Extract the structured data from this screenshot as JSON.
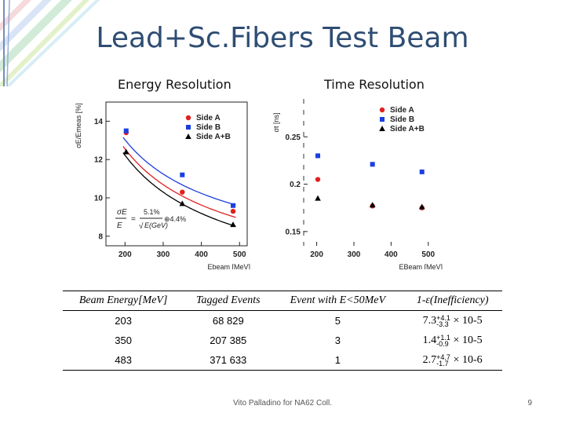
{
  "slide": {
    "title": "Lead+Sc.Fibers Test Beam",
    "energy_heading": "Energy Resolution",
    "time_heading": "Time Resolution",
    "footer": "Vito Palladino for NA62 Coll.",
    "page_number": "9"
  },
  "chart_data": [
    {
      "type": "scatter",
      "name": "energy",
      "ylabel": "σE/Emeas [%]",
      "xlabel": "Ebeam [MeV]",
      "xlim": [
        150,
        520
      ],
      "ylim": [
        7.5,
        15
      ],
      "xticks": [
        200,
        300,
        400,
        500
      ],
      "yticks": [
        8,
        10,
        12,
        14
      ],
      "formula": {
        "lhs_num": "σE",
        "lhs_den": "E",
        "coef": "5.1%",
        "sqrt": "E(GeV)",
        "const": "⊕4.4%"
      },
      "series": [
        {
          "name": "Side A",
          "color": "#e02020",
          "marker": "circle",
          "x": [
            203,
            350,
            483
          ],
          "y": [
            13.4,
            10.3,
            9.3
          ]
        },
        {
          "name": "Side B",
          "color": "#1a3fe0",
          "marker": "square",
          "x": [
            203,
            350,
            483
          ],
          "y": [
            13.5,
            11.2,
            9.6
          ]
        },
        {
          "name": "Side A+B",
          "color": "#000000",
          "marker": "triangle",
          "x": [
            203,
            350,
            483
          ],
          "y": [
            12.4,
            9.7,
            8.6
          ]
        }
      ],
      "fits": [
        {
          "color": "#1a3fe0",
          "a": 5.1,
          "b": 6.3
        },
        {
          "color": "#e02020",
          "a": 5.1,
          "b": 5.25
        },
        {
          "color": "#000000",
          "a": 5.1,
          "b": 4.4
        }
      ]
    },
    {
      "type": "scatter",
      "name": "time",
      "ylabel": "σt [ns]",
      "xlabel": "EBeam [MeV]",
      "xlim": [
        165,
        530
      ],
      "ylim": [
        0.135,
        0.29
      ],
      "xticks": [
        200,
        300,
        400,
        500
      ],
      "yticks": [
        0.15,
        0.2,
        0.25
      ],
      "series": [
        {
          "name": "Side A",
          "color": "#e02020",
          "marker": "circle",
          "x": [
            203,
            350,
            483
          ],
          "y": [
            0.205,
            0.177,
            0.175
          ]
        },
        {
          "name": "Side B",
          "color": "#1a3fe0",
          "marker": "square",
          "x": [
            203,
            350,
            483
          ],
          "y": [
            0.23,
            0.221,
            0.213
          ]
        },
        {
          "name": "Side A+B",
          "color": "#000000",
          "marker": "triangle",
          "x": [
            203,
            350,
            483
          ],
          "y": [
            0.185,
            0.178,
            0.176
          ]
        }
      ]
    }
  ],
  "table": {
    "headers": [
      "Beam Energy[MeV]",
      "Tagged Events",
      "Event with E<50MeV",
      "1-ε(Inefficiency)"
    ],
    "rows": [
      {
        "energy": "203",
        "tagged": "68 829",
        "low": "5",
        "eff_val": "7.3",
        "eff_up": "+4.1",
        "eff_down": "-3.3",
        "eff_exp": "× 10-5"
      },
      {
        "energy": "350",
        "tagged": "207 385",
        "low": "3",
        "eff_val": "1.4",
        "eff_up": "+1.1",
        "eff_down": "-0.9",
        "eff_exp": "× 10-5"
      },
      {
        "energy": "483",
        "tagged": "371 633",
        "low": "1",
        "eff_val": "2.7",
        "eff_up": "+4.7",
        "eff_down": "-1.7",
        "eff_exp": "× 10-6"
      }
    ]
  }
}
